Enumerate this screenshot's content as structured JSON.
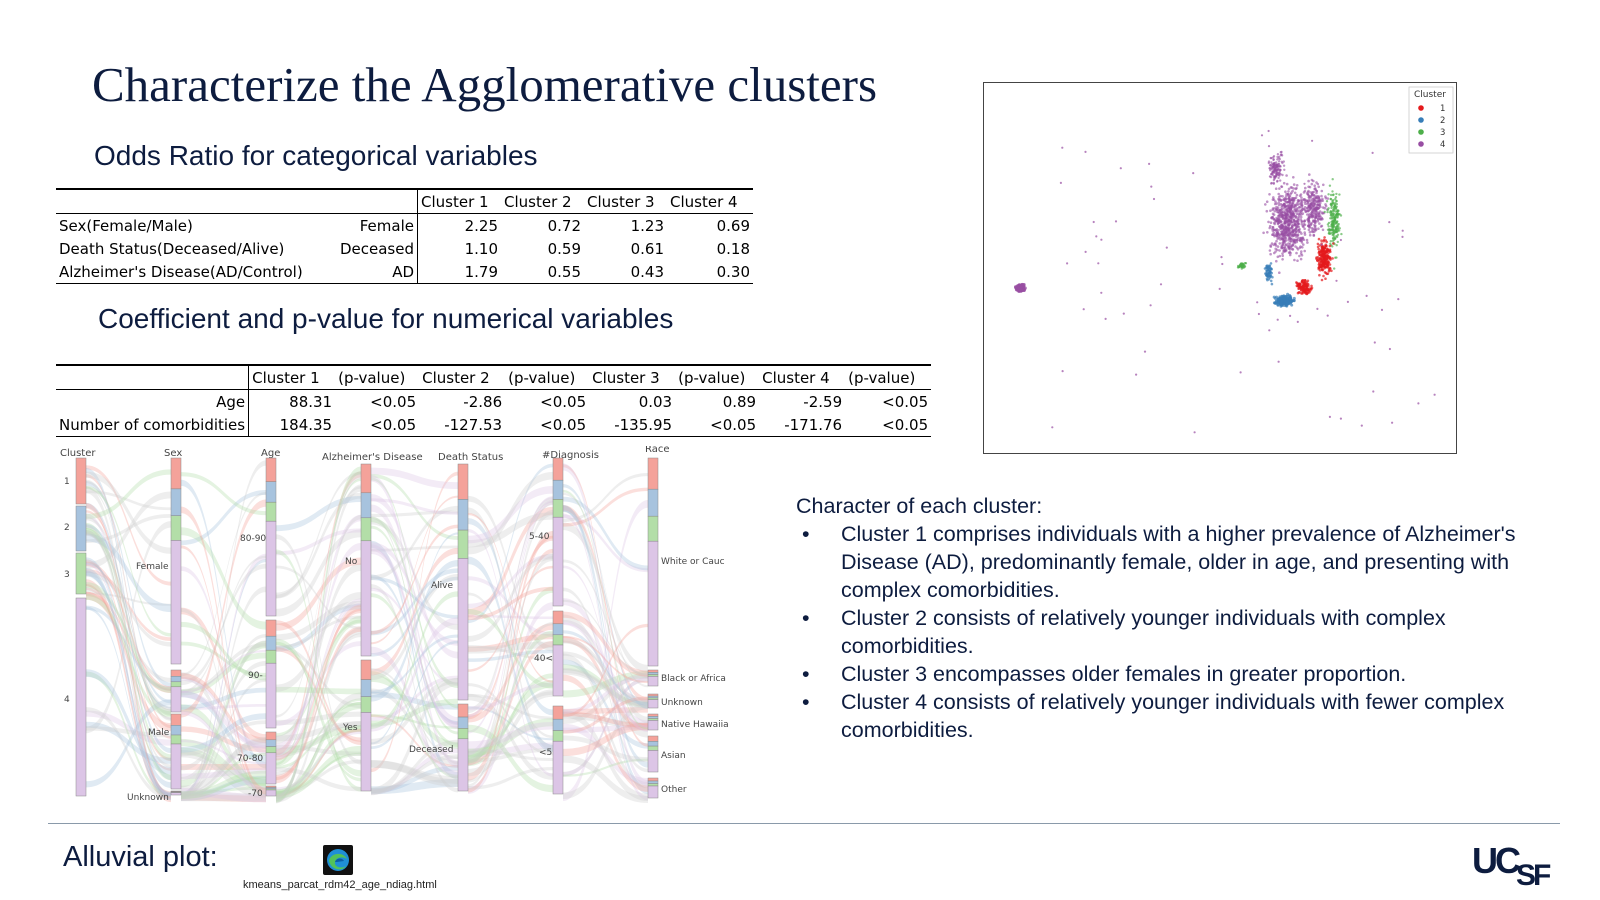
{
  "title": "Characterize the Agglomerative clusters",
  "odds_section_title": "Odds Ratio for categorical variables",
  "odds_table": {
    "headers": [
      "Cluster 1",
      "Cluster 2",
      "Cluster 3",
      "Cluster 4"
    ],
    "rows": [
      {
        "variable": "Sex(Female/Male)",
        "level": "Female",
        "values": [
          "2.25",
          "0.72",
          "1.23",
          "0.69"
        ]
      },
      {
        "variable": "Death Status(Deceased/Alive)",
        "level": "Deceased",
        "values": [
          "1.10",
          "0.59",
          "0.61",
          "0.18"
        ]
      },
      {
        "variable": "Alzheimer's Disease(AD/Control)",
        "level": "AD",
        "values": [
          "1.79",
          "0.55",
          "0.43",
          "0.30"
        ]
      }
    ]
  },
  "coef_section_title": "Coefficient and p-value for numerical variables",
  "coef_table": {
    "headers": [
      "Cluster 1",
      "(p-value)",
      "Cluster 2",
      "(p-value)",
      "Cluster 3",
      "(p-value)",
      "Cluster 4",
      "(p-value)"
    ],
    "rows": [
      {
        "variable": "Age",
        "values": [
          "88.31",
          "<0.05",
          "-2.86",
          "<0.05",
          "0.03",
          "0.89",
          "-2.59",
          "<0.05"
        ]
      },
      {
        "variable": "Number of comorbidities",
        "values": [
          "184.35",
          "<0.05",
          "-127.53",
          "<0.05",
          "-135.95",
          "<0.05",
          "-171.76",
          "<0.05"
        ]
      }
    ]
  },
  "scatter": {
    "legend_title": "Cluster",
    "legend": [
      {
        "label": "1",
        "color": "#e41a1c"
      },
      {
        "label": "2",
        "color": "#377eb8"
      },
      {
        "label": "3",
        "color": "#4daf4a"
      },
      {
        "label": "4",
        "color": "#984ea3"
      }
    ]
  },
  "alluvial": {
    "axes": [
      "Cluster",
      "Sex",
      "Age",
      "Alzheimer's Disease",
      "Death Status",
      "#Diagnosis",
      "Race"
    ],
    "cluster_labels": [
      "1",
      "2",
      "3",
      "4"
    ],
    "sex_labels": [
      "Female",
      "Male",
      "Unknown"
    ],
    "age_labels": [
      "80-90",
      "90-",
      "70-80",
      "-70"
    ],
    "ad_labels": [
      "No",
      "Yes"
    ],
    "death_labels": [
      "Alive",
      "Deceased"
    ],
    "diag_labels": [
      "5-40",
      "40<",
      "<5"
    ],
    "race_labels": [
      "White or Cauc",
      "Black or Africa",
      "Unknown",
      "Native Hawaiia",
      "Asian",
      "Other"
    ],
    "colors": {
      "c1": "#f4a29a",
      "c2": "#a7c3de",
      "c3": "#b3dea8",
      "c4": "#dcc5e6",
      "grey": "#cfcfcf"
    }
  },
  "characters": {
    "heading": "Character of each cluster:",
    "bullet": "•",
    "items": [
      "Cluster 1 comprises individuals with a higher prevalence of Alzheimer's Disease (AD), predominantly female, older in age, and presenting with complex comorbidities.",
      "Cluster 2 consists of relatively younger individuals with complex comorbidities.",
      "Cluster 3 encompasses older females in greater proportion.",
      "Cluster 4 consists of relatively younger individuals with fewer complex comorbidities."
    ]
  },
  "footer": {
    "label": "Alluvial plot:",
    "file_name": "kmeans_parcat_rdm42_age_ndiag.html",
    "logo_text": "UCSF"
  }
}
